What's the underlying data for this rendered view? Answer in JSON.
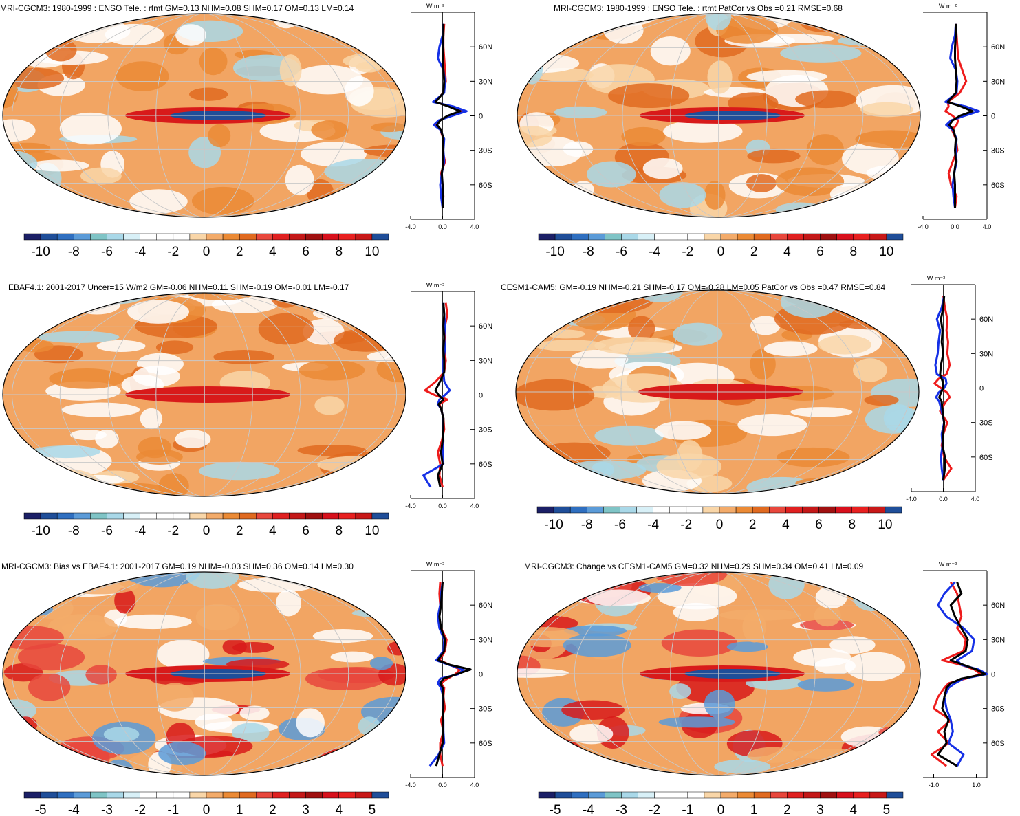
{
  "panels": [
    {
      "id": "p1",
      "title": "MRI-CGCM3: 1980-1999 : ENSO Tele. : rtmt GM=0.13 NHM=0.08 SHM=0.17 OM=0.13 LM=0.14",
      "units_label": "W m⁻²",
      "colorbar_labels": [
        "-10",
        "-8",
        "-6",
        "-4",
        "-2",
        "0",
        "2",
        "4",
        "6",
        "8",
        "10"
      ],
      "zonal_xticks": [
        "-4.0",
        "0.0",
        "4.0"
      ],
      "zonal_yticks": [
        "60N",
        "30N",
        "0",
        "30S",
        "60S"
      ]
    },
    {
      "id": "p2",
      "title": "MRI-CGCM3: 1980-1999 : ENSO Tele. : rtmt PatCor vs Obs =0.21 RMSE=0.68",
      "units_label": "W m⁻²",
      "colorbar_labels": [
        "-10",
        "-8",
        "-6",
        "-4",
        "-2",
        "0",
        "2",
        "4",
        "6",
        "8",
        "10"
      ],
      "zonal_xticks": [
        "-4.0",
        "0.0",
        "4.0"
      ],
      "zonal_yticks": [
        "60N",
        "30N",
        "0",
        "30S",
        "60S"
      ]
    },
    {
      "id": "p3",
      "title": "EBAF4.1: 2001-2017 Uncer=15 W/m2 GM=-0.06 NHM=0.11 SHM=-0.19 OM=-0.01 LM=-0.17",
      "units_label": "W m⁻²",
      "colorbar_labels": [
        "-10",
        "-8",
        "-6",
        "-4",
        "-2",
        "0",
        "2",
        "4",
        "6",
        "8",
        "10"
      ],
      "zonal_xticks": [
        "-4.0",
        "0.0",
        "4.0"
      ],
      "zonal_yticks": [
        "60N",
        "30N",
        "0",
        "30S",
        "60S"
      ]
    },
    {
      "id": "p4",
      "title": "CESM1-CAM5: GM=-0.19 NHM=-0.21 SHM=-0.17 OM=-0.28 LM=0.05 PatCor vs Obs =0.47 RMSE=0.84",
      "units_label": "W m⁻²",
      "colorbar_labels": [
        "-10",
        "-8",
        "-6",
        "-4",
        "-2",
        "0",
        "2",
        "4",
        "6",
        "8",
        "10"
      ],
      "zonal_xticks": [
        "-4.0",
        "0.0",
        "4.0"
      ],
      "zonal_yticks": [
        "60N",
        "30N",
        "0",
        "30S",
        "60S"
      ]
    },
    {
      "id": "p5",
      "title": "MRI-CGCM3: Bias vs EBAF4.1: 2001-2017 GM=0.19 NHM=-0.03 SHM=0.36 OM=0.14 LM=0.30",
      "units_label": "W m⁻²",
      "colorbar_labels": [
        "-5",
        "-4",
        "-3",
        "-2",
        "-1",
        "0",
        "1",
        "2",
        "3",
        "4",
        "5"
      ],
      "zonal_xticks": [
        "-4.0",
        "0.0",
        "4.0"
      ],
      "zonal_yticks": [
        "60N",
        "30N",
        "0",
        "30S",
        "60S"
      ]
    },
    {
      "id": "p6",
      "title": "MRI-CGCM3: Change vs CESM1-CAM5 GM=0.32 NHM=0.29 SHM=0.34 OM=0.41 LM=0.09",
      "units_label": "W m⁻²",
      "colorbar_labels": [
        "-5",
        "-4",
        "-3",
        "-2",
        "-1",
        "0",
        "1",
        "2",
        "3",
        "4",
        "5"
      ],
      "zonal_xticks": [
        "-1.0",
        "1.0"
      ],
      "zonal_yticks": [
        "60N",
        "30N",
        "0",
        "30S",
        "60S"
      ]
    }
  ],
  "colors": {
    "palette": [
      "#1b1f66",
      "#1f4e99",
      "#2f6fc0",
      "#5b9bd8",
      "#7fc4c6",
      "#a9d8e8",
      "#d8f0f7",
      "#ffffff",
      "#ffffff",
      "#ffffff",
      "#f9d6a8",
      "#f3ab6a",
      "#eb8a35",
      "#e06a20",
      "#e8473c",
      "#e02020",
      "#c41818",
      "#a01010",
      "#d8101c",
      "#e82020",
      "#c81818",
      "#1f4e99"
    ],
    "band_colors": [
      "#f2a563",
      "#ffffff",
      "#e06a20",
      "#d81a1a",
      "#1f4e99",
      "#a9d8e8"
    ],
    "zonal_red": "#ee1c1c",
    "zonal_blue": "#1530e6",
    "zonal_black": "#000000",
    "graticule": "#c8c8c8"
  },
  "chart_data": [
    {
      "type": "heatmap",
      "panel": "p1",
      "colorbar_range": [
        -10,
        10
      ],
      "zonal_xlim": [
        -4,
        4
      ],
      "lat_ticks": [
        60,
        30,
        0,
        -30,
        -60
      ],
      "zonal_series": [
        {
          "lat": [
            80,
            70,
            60,
            50,
            40,
            30,
            20,
            12,
            8,
            4,
            0,
            -4,
            -8,
            -12,
            -20,
            -30,
            -40,
            -50,
            -60,
            -70,
            -80
          ],
          "values": [
            0.2,
            0.1,
            0.1,
            0.2,
            0.3,
            0.4,
            0.1,
            -1.0,
            1.0,
            2.5,
            0.8,
            -0.4,
            -0.9,
            -0.3,
            0.1,
            0.0,
            0.3,
            -0.2,
            0.0,
            0.1,
            0.0
          ]
        },
        {
          "lat": [
            80,
            70,
            60,
            50,
            40,
            30,
            20,
            12,
            8,
            4,
            0,
            -4,
            -8,
            -12,
            -20,
            -30,
            -40,
            -50,
            -60,
            -70,
            -80
          ],
          "values": [
            0.1,
            0.0,
            -0.4,
            -0.6,
            0.1,
            0.3,
            0.2,
            -1.2,
            1.4,
            3.0,
            1.2,
            -0.5,
            -1.1,
            -0.3,
            0.2,
            0.1,
            0.2,
            -0.1,
            -0.3,
            -0.2,
            0.0
          ]
        },
        {
          "lat": [
            80,
            70,
            60,
            50,
            40,
            30,
            20,
            12,
            8,
            4,
            0,
            -4,
            -8,
            -12,
            -20,
            -30,
            -40,
            -50,
            -60,
            -70,
            -80
          ],
          "values": [
            0.1,
            0.1,
            0.0,
            0.0,
            0.1,
            0.2,
            0.1,
            -0.9,
            0.8,
            2.2,
            0.6,
            -0.3,
            -0.7,
            -0.2,
            0.1,
            0.0,
            0.1,
            -0.1,
            0.0,
            0.0,
            0.0
          ]
        }
      ]
    },
    {
      "type": "heatmap",
      "panel": "p2",
      "colorbar_range": [
        -10,
        10
      ],
      "zonal_xlim": [
        -4,
        4
      ],
      "lat_ticks": [
        60,
        30,
        0,
        -30,
        -60
      ],
      "zonal_series": [
        {
          "lat": [
            80,
            70,
            60,
            50,
            40,
            30,
            20,
            12,
            8,
            4,
            0,
            -4,
            -8,
            -12,
            -20,
            -30,
            -40,
            -50,
            -60,
            -70,
            -80
          ],
          "values": [
            0.1,
            0.2,
            0.3,
            0.4,
            0.9,
            1.4,
            0.6,
            -0.9,
            -0.8,
            -1.2,
            -0.3,
            0.4,
            0.2,
            -0.4,
            0.1,
            0.3,
            -0.3,
            -0.8,
            -0.5,
            0.2,
            0.0
          ]
        },
        {
          "lat": [
            80,
            70,
            60,
            50,
            40,
            30,
            20,
            12,
            8,
            4,
            0,
            -4,
            -8,
            -12,
            -20,
            -30,
            -40,
            -50,
            -60,
            -70,
            -80
          ],
          "values": [
            0.1,
            0.0,
            -0.4,
            -0.6,
            0.1,
            0.3,
            0.2,
            -1.2,
            1.4,
            3.0,
            1.2,
            -0.5,
            -1.1,
            -0.3,
            0.2,
            0.1,
            0.2,
            -0.1,
            -0.3,
            -0.2,
            0.0
          ]
        },
        {
          "lat": [
            80,
            70,
            60,
            50,
            40,
            30,
            20,
            12,
            8,
            4,
            0,
            -4,
            -8,
            -12,
            -20,
            -30,
            -40,
            -50,
            -60,
            -70,
            -80
          ],
          "values": [
            0.1,
            0.1,
            0.0,
            0.0,
            0.1,
            0.2,
            0.1,
            -0.9,
            0.8,
            2.2,
            0.6,
            -0.3,
            -0.7,
            -0.2,
            0.1,
            0.0,
            0.1,
            -0.1,
            0.0,
            0.0,
            0.0
          ]
        }
      ]
    },
    {
      "type": "heatmap",
      "panel": "p3",
      "colorbar_range": [
        -10,
        10
      ],
      "zonal_xlim": [
        -4,
        4
      ],
      "lat_ticks": [
        60,
        30,
        0,
        -30,
        -60
      ],
      "zonal_series": [
        {
          "lat": [
            80,
            70,
            60,
            50,
            40,
            30,
            20,
            12,
            8,
            4,
            0,
            -4,
            -8,
            -12,
            -20,
            -30,
            -40,
            -50,
            -60,
            -70,
            -80
          ],
          "values": [
            0.4,
            0.6,
            0.3,
            0.3,
            0.2,
            0.4,
            0.2,
            -0.8,
            -1.5,
            -2.2,
            -1.0,
            0.6,
            -0.4,
            -0.2,
            0.1,
            0.2,
            -0.1,
            -0.6,
            -0.3,
            -0.4,
            0.0
          ]
        },
        {
          "lat": [
            80,
            70,
            60,
            50,
            40,
            30,
            20,
            12,
            8,
            4,
            0,
            -4,
            -8,
            -12,
            -20,
            -30,
            -40,
            -50,
            -60,
            -70,
            -80
          ],
          "values": [
            0.1,
            0.2,
            0.3,
            0.2,
            0.3,
            0.1,
            0.1,
            0.2,
            0.5,
            0.9,
            0.3,
            -0.4,
            -0.6,
            -0.2,
            0.1,
            0.0,
            0.1,
            0.0,
            0.1,
            -2.4,
            -1.5
          ]
        },
        {
          "lat": [
            80,
            70,
            60,
            50,
            40,
            30,
            20,
            12,
            8,
            4,
            0,
            -4,
            -8,
            -12,
            -20,
            -30,
            -40,
            -50,
            -60,
            -70,
            -80
          ],
          "values": [
            0.1,
            0.2,
            0.1,
            0.2,
            0.1,
            0.2,
            0.2,
            -0.3,
            -0.6,
            -0.9,
            -0.5,
            0.1,
            -0.5,
            -0.2,
            0.1,
            0.1,
            0.0,
            -0.2,
            0.0,
            -0.6,
            -0.3
          ]
        }
      ]
    },
    {
      "type": "heatmap",
      "panel": "p4",
      "colorbar_range": [
        -10,
        10
      ],
      "zonal_xlim": [
        -4,
        4
      ],
      "lat_ticks": [
        60,
        30,
        0,
        -30,
        -60
      ],
      "zonal_series": [
        {
          "lat": [
            80,
            70,
            60,
            50,
            40,
            30,
            20,
            12,
            8,
            4,
            0,
            -4,
            -8,
            -12,
            -20,
            -30,
            -40,
            -50,
            -60,
            -70,
            -80
          ],
          "values": [
            0.0,
            0.2,
            0.5,
            0.4,
            0.6,
            0.5,
            0.8,
            0.4,
            -0.6,
            -1.1,
            -0.3,
            0.5,
            0.8,
            0.3,
            -0.4,
            0.5,
            0.0,
            -0.2,
            0.1,
            1.0,
            0.0
          ]
        },
        {
          "lat": [
            80,
            70,
            60,
            50,
            40,
            30,
            20,
            12,
            8,
            4,
            0,
            -4,
            -8,
            -12,
            -20,
            -30,
            -40,
            -50,
            -60,
            -70,
            -80
          ],
          "values": [
            0.1,
            -0.2,
            -0.8,
            -0.4,
            -0.6,
            -0.7,
            -1.0,
            -0.8,
            0.3,
            0.4,
            0.1,
            -0.6,
            -0.9,
            -0.5,
            -0.2,
            0.1,
            -0.2,
            -0.1,
            -0.3,
            -0.2,
            0.0
          ]
        },
        {
          "lat": [
            80,
            70,
            60,
            50,
            40,
            30,
            20,
            12,
            8,
            4,
            0,
            -4,
            -8,
            -12,
            -20,
            -30,
            -40,
            -50,
            -60,
            -70,
            -80
          ],
          "values": [
            0.1,
            0.0,
            -0.3,
            -0.1,
            -0.2,
            0.0,
            -0.3,
            -0.4,
            -0.2,
            0.0,
            0.0,
            -0.3,
            -0.5,
            -0.2,
            -0.1,
            0.1,
            0.0,
            -0.1,
            0.2,
            0.2,
            0.0
          ]
        }
      ]
    },
    {
      "type": "heatmap",
      "panel": "p5",
      "colorbar_range": [
        -5,
        5
      ],
      "zonal_xlim": [
        -4,
        4
      ],
      "lat_ticks": [
        60,
        30,
        0,
        -30,
        -60
      ],
      "zonal_series": [
        {
          "lat": [
            80,
            70,
            60,
            50,
            40,
            30,
            20,
            12,
            8,
            4,
            0,
            -4,
            -8,
            -12,
            -20,
            -30,
            -40,
            -50,
            -60,
            -70,
            -80
          ],
          "values": [
            -0.3,
            -0.4,
            -0.3,
            -0.5,
            -0.2,
            0.5,
            0.3,
            -0.4,
            0.9,
            2.2,
            1.6,
            0.6,
            -0.2,
            0.2,
            0.1,
            0.3,
            -0.2,
            0.1,
            -0.3,
            -0.3,
            0.0
          ]
        },
        {
          "lat": [
            80,
            70,
            60,
            50,
            40,
            30,
            20,
            12,
            8,
            4,
            0,
            -4,
            -8,
            -12,
            -20,
            -30,
            -40,
            -50,
            -60,
            -70,
            -80
          ],
          "values": [
            0.0,
            -0.2,
            -0.3,
            -0.6,
            -0.4,
            0.2,
            0.1,
            -0.8,
            0.8,
            2.6,
            2.0,
            -0.3,
            -0.6,
            -0.2,
            0.1,
            0.0,
            0.1,
            0.1,
            0.2,
            -0.5,
            -1.6
          ]
        },
        {
          "lat": [
            80,
            70,
            60,
            50,
            40,
            30,
            20,
            12,
            8,
            4,
            0,
            -4,
            -8,
            -12,
            -20,
            -30,
            -40,
            -50,
            -60,
            -70,
            -80
          ],
          "values": [
            0.0,
            -0.1,
            -0.2,
            -0.4,
            -0.2,
            0.3,
            0.2,
            -0.6,
            0.9,
            3.5,
            1.8,
            0.1,
            -0.3,
            0.0,
            0.1,
            0.1,
            0.0,
            0.0,
            0.0,
            -0.4,
            -0.8
          ]
        }
      ]
    },
    {
      "type": "heatmap",
      "panel": "p6",
      "colorbar_range": [
        -5,
        5
      ],
      "zonal_xlim": [
        -1.5,
        1.5
      ],
      "lat_ticks": [
        60,
        30,
        0,
        -30,
        -60
      ],
      "zonal_series": [
        {
          "lat": [
            80,
            70,
            60,
            50,
            40,
            30,
            20,
            12,
            8,
            4,
            0,
            -4,
            -8,
            -12,
            -20,
            -30,
            -40,
            -50,
            -60,
            -70,
            -80
          ],
          "values": [
            -0.2,
            0.1,
            0.2,
            0.3,
            0.1,
            0.5,
            0.4,
            -0.6,
            0.3,
            0.9,
            1.2,
            0.5,
            -0.3,
            -0.5,
            -0.8,
            -1.0,
            -0.2,
            -0.8,
            -0.3,
            -1.1,
            -0.4
          ]
        },
        {
          "lat": [
            80,
            70,
            60,
            50,
            40,
            30,
            20,
            12,
            8,
            4,
            0,
            -4,
            -8,
            -12,
            -20,
            -30,
            -40,
            -50,
            -60,
            -70,
            -80
          ],
          "values": [
            0.0,
            -0.5,
            -0.8,
            -0.4,
            0.4,
            0.9,
            0.8,
            0.1,
            0.3,
            1.1,
            1.5,
            0.4,
            0.0,
            -0.3,
            -0.5,
            -0.4,
            -0.2,
            -0.1,
            -0.3,
            0.4,
            0.1
          ]
        },
        {
          "lat": [
            80,
            70,
            60,
            50,
            40,
            30,
            20,
            12,
            8,
            4,
            0,
            -4,
            -8,
            -12,
            -20,
            -30,
            -40,
            -50,
            -60,
            -70,
            -80
          ],
          "values": [
            0.1,
            0.3,
            -0.2,
            0.0,
            0.3,
            0.6,
            0.5,
            -0.2,
            0.4,
            1.0,
            1.4,
            0.3,
            -0.2,
            -0.4,
            -0.5,
            -0.6,
            -0.3,
            -0.5,
            -0.4,
            -0.8,
            0.1
          ]
        }
      ]
    }
  ]
}
